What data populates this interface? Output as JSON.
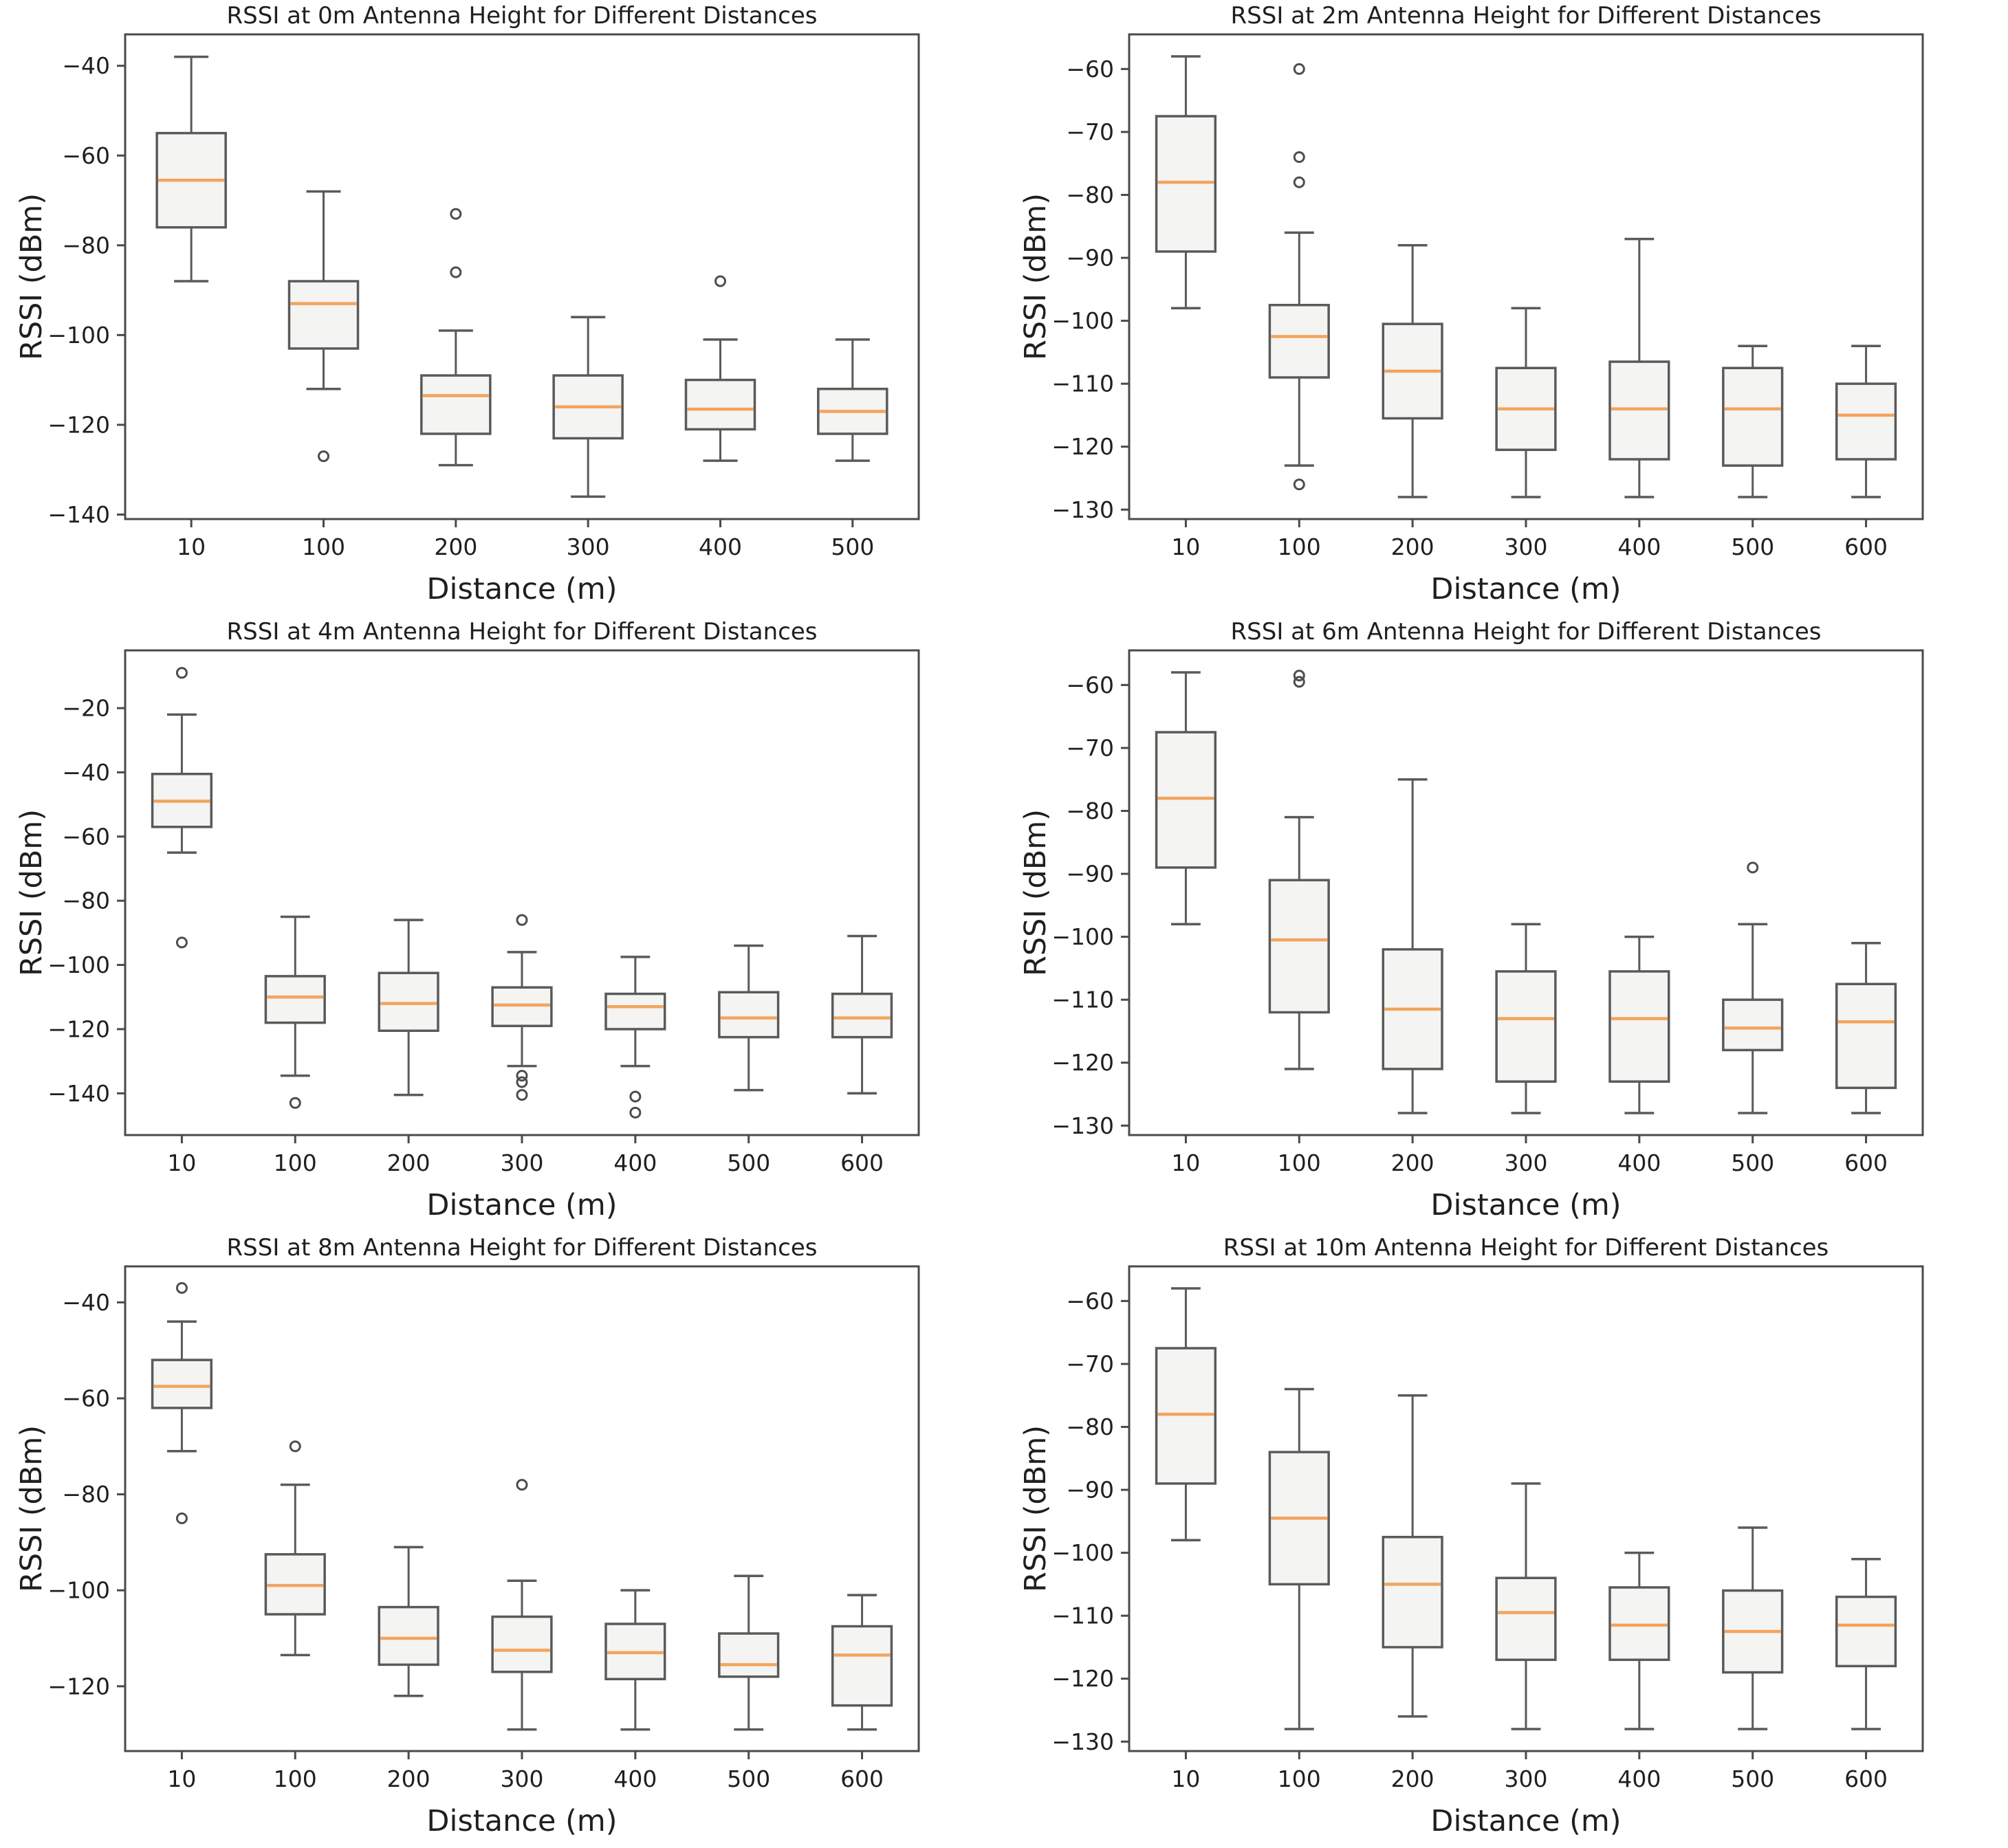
{
  "page": {
    "background": "#ffffff"
  },
  "style": {
    "box_fill": "#f4f4f2",
    "box_edge": "#5a5a5a",
    "whisker_color": "#5a5a5a",
    "median_color": "#f3a45f",
    "outlier_edge": "#4d4d4d",
    "spine_color": "#4a4a4a",
    "text_color": "#1f1f1f"
  },
  "chart_data": [
    {
      "type": "box",
      "antenna_height": "0m",
      "title": "RSSI at 0m Antenna Height for Different Distances",
      "xlabel": "Distance (m)",
      "ylabel": "RSSI (dBm)",
      "categories": [
        "10",
        "100",
        "200",
        "300",
        "400",
        "500"
      ],
      "yticks": [
        -140,
        -120,
        -100,
        -80,
        -60,
        -40
      ],
      "ylim": [
        -141,
        -33
      ],
      "grid": false,
      "legend": "none",
      "boxes": [
        {
          "whislo": -88,
          "q1": -76,
          "med": -65.5,
          "q3": -55,
          "whishi": -38,
          "outliers": []
        },
        {
          "whislo": -112,
          "q1": -103,
          "med": -93,
          "q3": -88,
          "whishi": -68,
          "outliers": [
            -127
          ]
        },
        {
          "whislo": -129,
          "q1": -122,
          "med": -113.5,
          "q3": -109,
          "whishi": -99,
          "outliers": [
            -73,
            -86
          ]
        },
        {
          "whislo": -136,
          "q1": -123,
          "med": -116,
          "q3": -109,
          "whishi": -96,
          "outliers": []
        },
        {
          "whislo": -128,
          "q1": -121,
          "med": -116.5,
          "q3": -110,
          "whishi": -101,
          "outliers": [
            -88
          ]
        },
        {
          "whislo": -128,
          "q1": -122,
          "med": -117,
          "q3": -112,
          "whishi": -101,
          "outliers": []
        }
      ]
    },
    {
      "type": "box",
      "antenna_height": "2m",
      "title": "RSSI at 2m Antenna Height for Different Distances",
      "xlabel": "Distance (m)",
      "ylabel": "RSSI (dBm)",
      "categories": [
        "10",
        "100",
        "200",
        "300",
        "400",
        "500",
        "600"
      ],
      "yticks": [
        -130,
        -120,
        -110,
        -100,
        -90,
        -80,
        -70,
        -60
      ],
      "ylim": [
        -131.5,
        -54.5
      ],
      "grid": false,
      "legend": "none",
      "boxes": [
        {
          "whislo": -98,
          "q1": -89,
          "med": -78,
          "q3": -67.5,
          "whishi": -58,
          "outliers": []
        },
        {
          "whislo": -123,
          "q1": -109,
          "med": -102.5,
          "q3": -97.5,
          "whishi": -86,
          "outliers": [
            -60,
            -74,
            -78,
            -126
          ]
        },
        {
          "whislo": -128,
          "q1": -115.5,
          "med": -108,
          "q3": -100.5,
          "whishi": -88,
          "outliers": []
        },
        {
          "whislo": -128,
          "q1": -120.5,
          "med": -114,
          "q3": -107.5,
          "whishi": -98,
          "outliers": []
        },
        {
          "whislo": -128,
          "q1": -122,
          "med": -114,
          "q3": -106.5,
          "whishi": -87,
          "outliers": []
        },
        {
          "whislo": -128,
          "q1": -123,
          "med": -114,
          "q3": -107.5,
          "whishi": -104,
          "outliers": []
        },
        {
          "whislo": -128,
          "q1": -122,
          "med": -115,
          "q3": -110,
          "whishi": -104,
          "outliers": []
        }
      ]
    },
    {
      "type": "box",
      "antenna_height": "4m",
      "title": "RSSI at 4m Antenna Height for Different Distances",
      "xlabel": "Distance (m)",
      "ylabel": "RSSI (dBm)",
      "categories": [
        "10",
        "100",
        "200",
        "300",
        "400",
        "500",
        "600"
      ],
      "yticks": [
        -140,
        -120,
        -100,
        -80,
        -60,
        -40,
        -20
      ],
      "ylim": [
        -153,
        -2
      ],
      "grid": false,
      "legend": "none",
      "boxes": [
        {
          "whislo": -65,
          "q1": -57,
          "med": -49,
          "q3": -40.5,
          "whishi": -22,
          "outliers": [
            -9,
            -93
          ]
        },
        {
          "whislo": -134.5,
          "q1": -118,
          "med": -110,
          "q3": -103.5,
          "whishi": -85,
          "outliers": [
            -143
          ]
        },
        {
          "whislo": -140.5,
          "q1": -120.5,
          "med": -112,
          "q3": -102.5,
          "whishi": -86,
          "outliers": []
        },
        {
          "whislo": -131.5,
          "q1": -119,
          "med": -112.5,
          "q3": -107,
          "whishi": -96,
          "outliers": [
            -86,
            -134.5,
            -136.5,
            -140.5
          ]
        },
        {
          "whislo": -131.5,
          "q1": -120,
          "med": -113,
          "q3": -109,
          "whishi": -97.5,
          "outliers": [
            -141,
            -146
          ]
        },
        {
          "whislo": -139,
          "q1": -122.5,
          "med": -116.5,
          "q3": -108.5,
          "whishi": -94,
          "outliers": []
        },
        {
          "whislo": -140,
          "q1": -122.5,
          "med": -116.5,
          "q3": -109,
          "whishi": -91,
          "outliers": []
        }
      ]
    },
    {
      "type": "box",
      "antenna_height": "6m",
      "title": "RSSI at 6m Antenna Height for Different Distances",
      "xlabel": "Distance (m)",
      "ylabel": "RSSI (dBm)",
      "categories": [
        "10",
        "100",
        "200",
        "300",
        "400",
        "500",
        "600"
      ],
      "yticks": [
        -130,
        -120,
        -110,
        -100,
        -90,
        -80,
        -70,
        -60
      ],
      "ylim": [
        -131.5,
        -54.5
      ],
      "grid": false,
      "legend": "none",
      "boxes": [
        {
          "whislo": -98,
          "q1": -89,
          "med": -78,
          "q3": -67.5,
          "whishi": -58,
          "outliers": []
        },
        {
          "whislo": -121,
          "q1": -112,
          "med": -100.5,
          "q3": -91,
          "whishi": -81,
          "outliers": [
            -58.5,
            -59.5
          ]
        },
        {
          "whislo": -128,
          "q1": -121,
          "med": -111.5,
          "q3": -102,
          "whishi": -75,
          "outliers": []
        },
        {
          "whislo": -128,
          "q1": -123,
          "med": -113,
          "q3": -105.5,
          "whishi": -98,
          "outliers": []
        },
        {
          "whislo": -128,
          "q1": -123,
          "med": -113,
          "q3": -105.5,
          "whishi": -100,
          "outliers": []
        },
        {
          "whislo": -128,
          "q1": -118,
          "med": -114.5,
          "q3": -110,
          "whishi": -98,
          "outliers": [
            -89
          ]
        },
        {
          "whislo": -128,
          "q1": -124,
          "med": -113.5,
          "q3": -107.5,
          "whishi": -101,
          "outliers": []
        }
      ]
    },
    {
      "type": "box",
      "antenna_height": "8m",
      "title": "RSSI at 8m Antenna Height for Different Distances",
      "xlabel": "Distance (m)",
      "ylabel": "RSSI (dBm)",
      "categories": [
        "10",
        "100",
        "200",
        "300",
        "400",
        "500",
        "600"
      ],
      "yticks": [
        -120,
        -100,
        -80,
        -60,
        -40
      ],
      "ylim": [
        -133.5,
        -32.5
      ],
      "grid": false,
      "legend": "none",
      "boxes": [
        {
          "whislo": -71,
          "q1": -62,
          "med": -57.5,
          "q3": -52,
          "whishi": -44,
          "outliers": [
            -37,
            -85
          ]
        },
        {
          "whislo": -113.5,
          "q1": -105,
          "med": -99,
          "q3": -92.5,
          "whishi": -78,
          "outliers": [
            -70
          ]
        },
        {
          "whislo": -122,
          "q1": -115.5,
          "med": -110,
          "q3": -103.5,
          "whishi": -91,
          "outliers": []
        },
        {
          "whislo": -129,
          "q1": -117,
          "med": -112.5,
          "q3": -105.5,
          "whishi": -98,
          "outliers": [
            -78
          ]
        },
        {
          "whislo": -129,
          "q1": -118.5,
          "med": -113,
          "q3": -107,
          "whishi": -100,
          "outliers": []
        },
        {
          "whislo": -129,
          "q1": -118,
          "med": -115.5,
          "q3": -109,
          "whishi": -97,
          "outliers": []
        },
        {
          "whislo": -129,
          "q1": -124,
          "med": -113.5,
          "q3": -107.5,
          "whishi": -101,
          "outliers": []
        }
      ]
    },
    {
      "type": "box",
      "antenna_height": "10m",
      "title": "RSSI at 10m Antenna Height for Different Distances",
      "xlabel": "Distance (m)",
      "ylabel": "RSSI (dBm)",
      "categories": [
        "10",
        "100",
        "200",
        "300",
        "400",
        "500",
        "600"
      ],
      "yticks": [
        -130,
        -120,
        -110,
        -100,
        -90,
        -80,
        -70,
        -60
      ],
      "ylim": [
        -131.5,
        -54.5
      ],
      "grid": false,
      "legend": "none",
      "boxes": [
        {
          "whislo": -98,
          "q1": -89,
          "med": -78,
          "q3": -67.5,
          "whishi": -58,
          "outliers": []
        },
        {
          "whislo": -128,
          "q1": -105,
          "med": -94.5,
          "q3": -84,
          "whishi": -74,
          "outliers": []
        },
        {
          "whislo": -126,
          "q1": -115,
          "med": -105,
          "q3": -97.5,
          "whishi": -75,
          "outliers": []
        },
        {
          "whislo": -128,
          "q1": -117,
          "med": -109.5,
          "q3": -104,
          "whishi": -89,
          "outliers": []
        },
        {
          "whislo": -128,
          "q1": -117,
          "med": -111.5,
          "q3": -105.5,
          "whishi": -100,
          "outliers": []
        },
        {
          "whislo": -128,
          "q1": -119,
          "med": -112.5,
          "q3": -106,
          "whishi": -96,
          "outliers": []
        },
        {
          "whislo": -128,
          "q1": -118,
          "med": -111.5,
          "q3": -107,
          "whishi": -101,
          "outliers": []
        }
      ]
    }
  ]
}
